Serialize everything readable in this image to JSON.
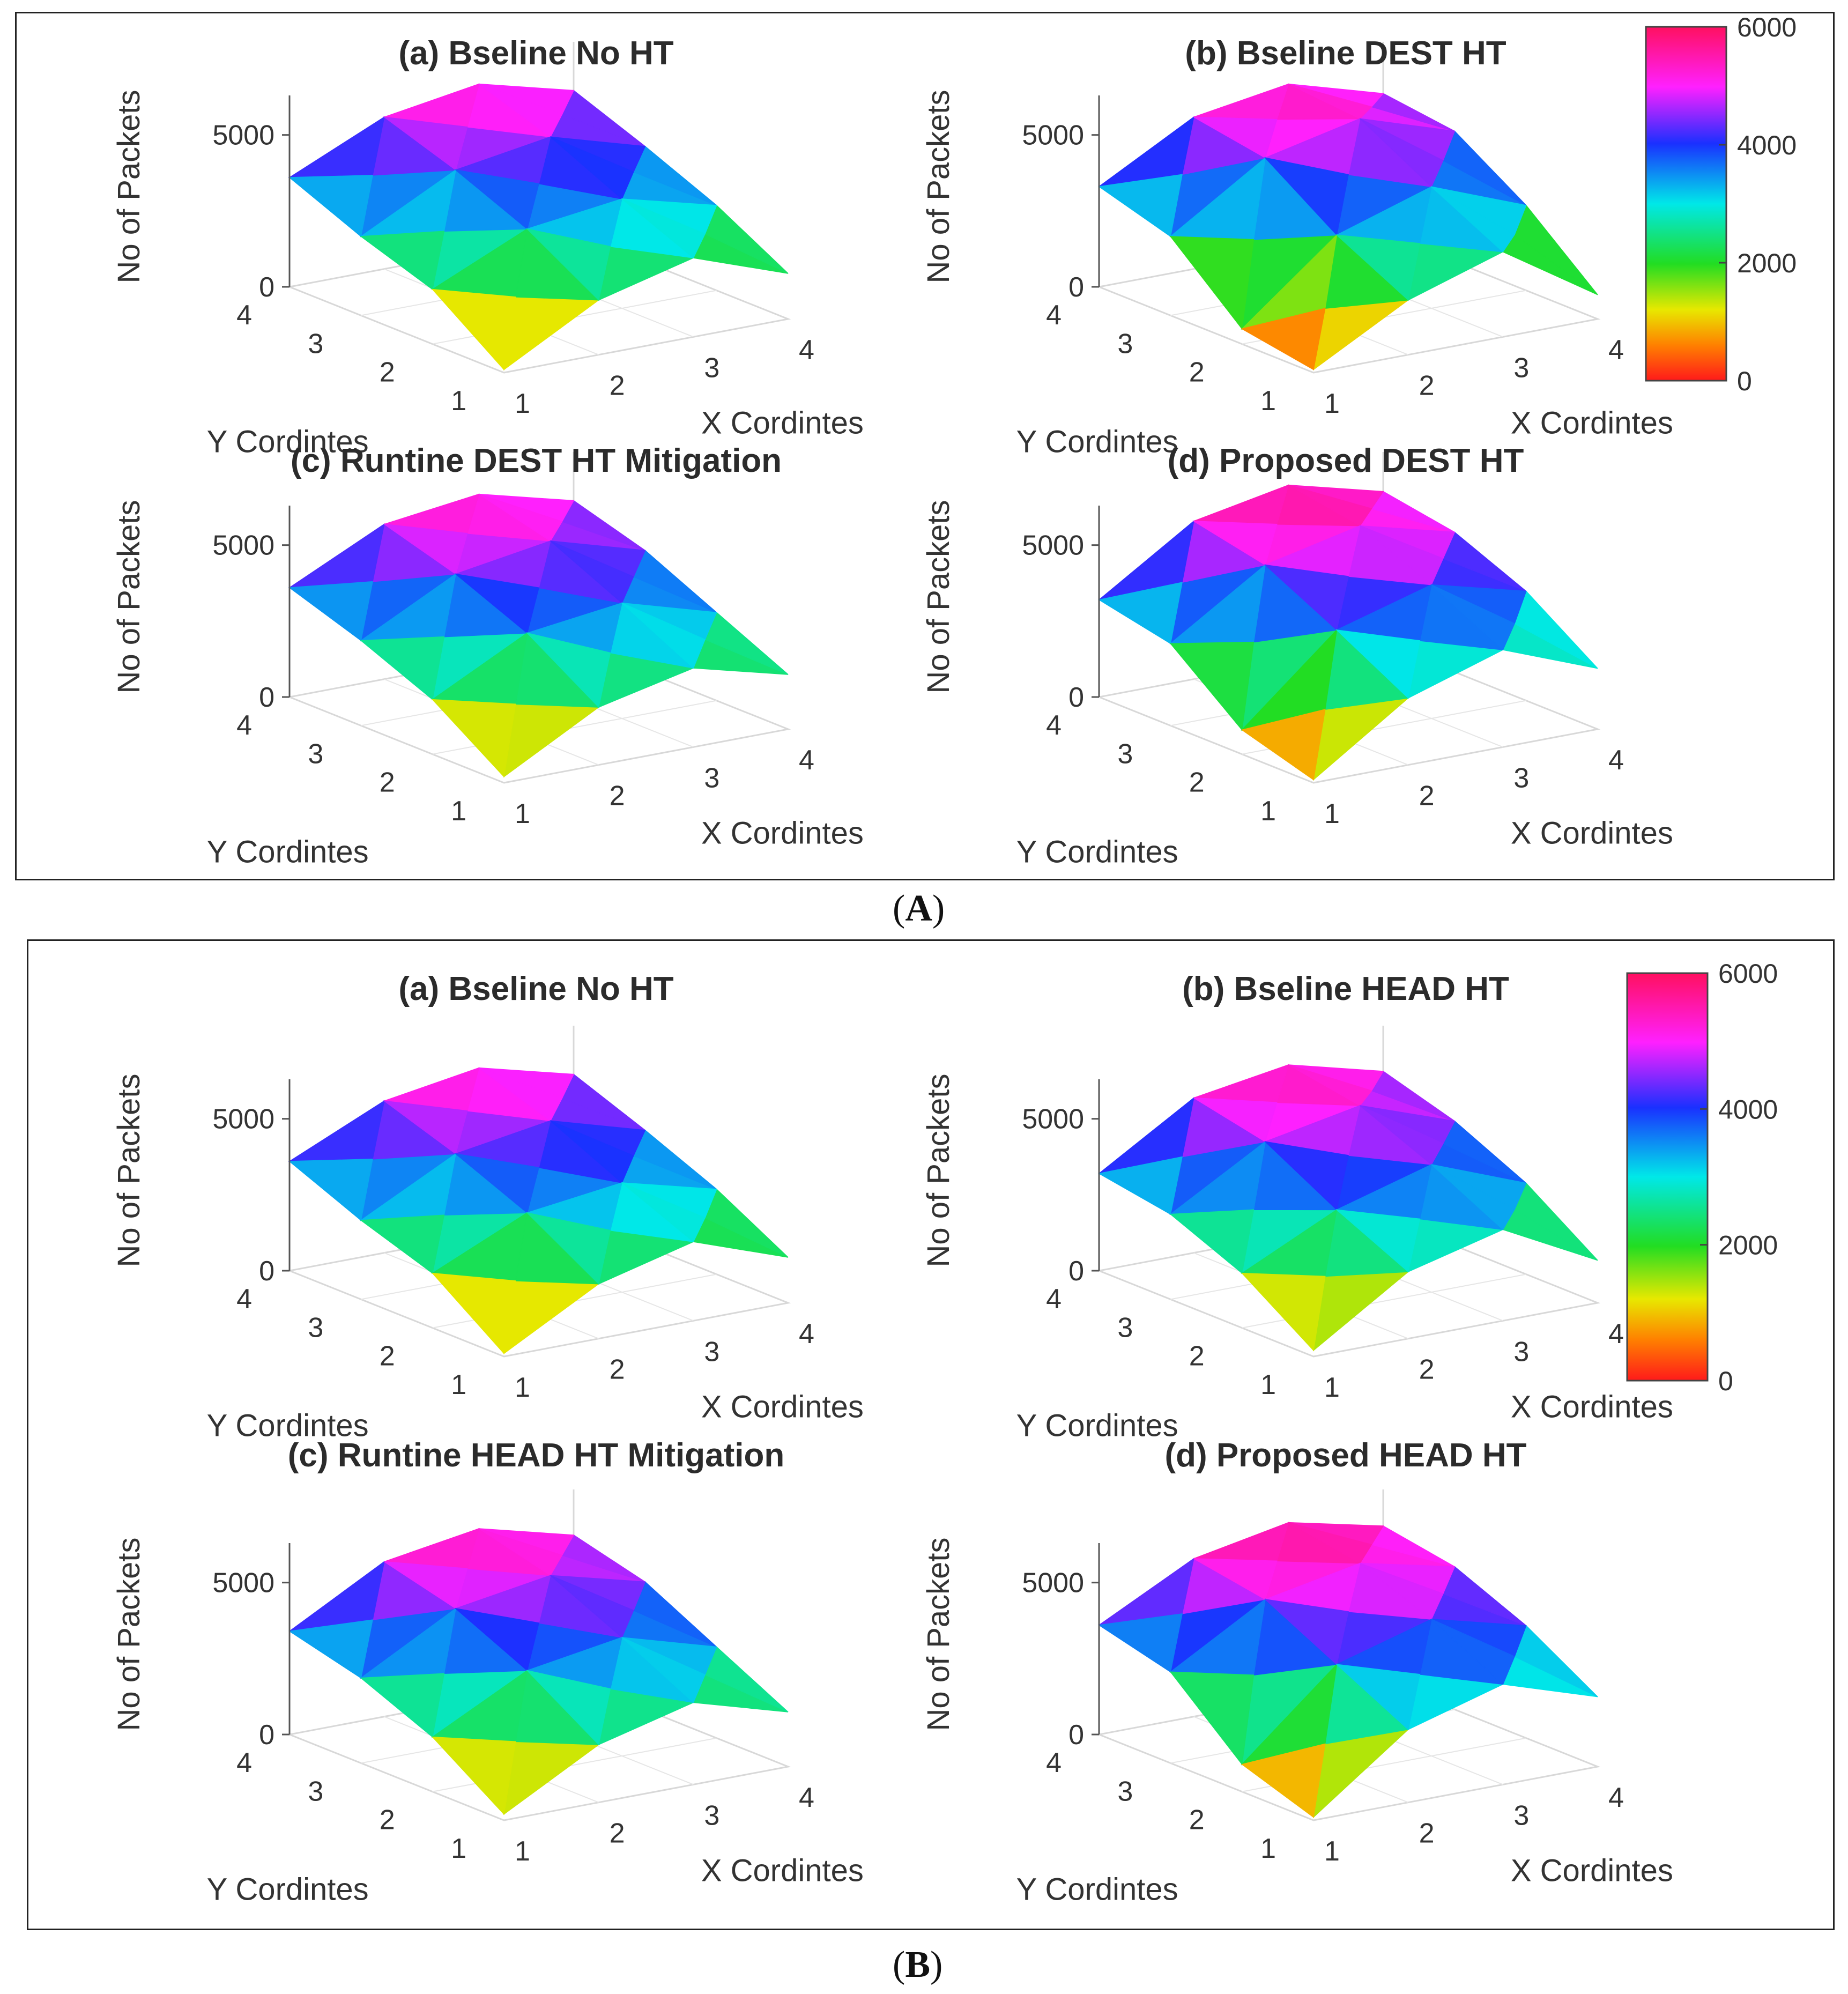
{
  "chart_data": {
    "type": "surface3d",
    "figure_panels": [
      {
        "id": "A",
        "label": "A",
        "colorbar": {
          "min": 0,
          "max": 6000,
          "ticks": [
            "0",
            "2000",
            "4000",
            "6000"
          ]
        },
        "subplots": [
          {
            "title": "(a) Bseline No HT",
            "xlabel": "X Cordintes",
            "ylabel": "Y Cordintes",
            "zlabel": "No of Packets",
            "x_ticks": [
              "1",
              "2",
              "3",
              "4"
            ],
            "y_ticks": [
              "1",
              "2",
              "3",
              "4"
            ],
            "z_ticks": [
              "0",
              "5000"
            ],
            "zlim": [
              0,
              6000
            ],
            "z": [
              [
                100,
                1800,
                2600,
                1500
              ],
              [
                1800,
                3200,
                3600,
                2800
              ],
              [
                2600,
                4200,
                4700,
                3800
              ],
              [
                3600,
                5000,
                5500,
                4700
              ]
            ]
          },
          {
            "title": "(b) Bseline DEST HT",
            "xlabel": "X Cordintes",
            "ylabel": "Y Cordintes",
            "zlabel": "No of Packets",
            "x_ticks": [
              "1",
              "2",
              "3",
              "4"
            ],
            "y_ticks": [
              "1",
              "2",
              "3",
              "4"
            ],
            "z_ticks": [
              "0",
              "5000"
            ],
            "zlim": [
              0,
              6000
            ],
            "z": [
              [
                100,
                1800,
                2800,
                800
              ],
              [
                500,
                3000,
                4000,
                2800
              ],
              [
                2600,
                4600,
                5300,
                4300
              ],
              [
                3300,
                5000,
                5500,
                4600
              ]
            ]
          },
          {
            "title": "(c) Runtine DEST HT Mitigation",
            "xlabel": "X Cordintes",
            "ylabel": "Y Cordintes",
            "zlabel": "No of Packets",
            "x_ticks": [
              "1",
              "2",
              "3",
              "4"
            ],
            "y_ticks": [
              "1",
              "2",
              "3",
              "4"
            ],
            "z_ticks": [
              "0",
              "5000"
            ],
            "zlim": [
              0,
              6000
            ],
            "z": [
              [
                200,
                1900,
                2600,
                1800
              ],
              [
                1800,
                3400,
                3800,
                2900
              ],
              [
                2800,
                4400,
                4900,
                4000
              ],
              [
                3600,
                5100,
                5500,
                4700
              ]
            ]
          },
          {
            "title": "(d) Proposed DEST HT",
            "xlabel": "X Cordintes",
            "ylabel": "Y Cordintes",
            "zlabel": "No of Packets",
            "x_ticks": [
              "1",
              "2",
              "3",
              "4"
            ],
            "y_ticks": [
              "1",
              "2",
              "3",
              "4"
            ],
            "z_ticks": [
              "0",
              "5000"
            ],
            "zlim": [
              0,
              6000
            ],
            "z": [
              [
                100,
                2200,
                3200,
                2000
              ],
              [
                800,
                3500,
                4400,
                3600
              ],
              [
                2700,
                4700,
                5400,
                4600
              ],
              [
                3200,
                5200,
                5800,
                5000
              ]
            ]
          }
        ]
      },
      {
        "id": "B",
        "label": "B",
        "colorbar": {
          "min": 0,
          "max": 6000,
          "ticks": [
            "0",
            "2000",
            "4000",
            "6000"
          ]
        },
        "subplots": [
          {
            "title": "(a) Bseline No HT",
            "xlabel": "X Cordintes",
            "ylabel": "Y Cordintes",
            "zlabel": "No of Packets",
            "x_ticks": [
              "1",
              "2",
              "3",
              "4"
            ],
            "y_ticks": [
              "1",
              "2",
              "3",
              "4"
            ],
            "z_ticks": [
              "0",
              "5000"
            ],
            "zlim": [
              0,
              6000
            ],
            "z": [
              [
                100,
                1800,
                2600,
                1500
              ],
              [
                1800,
                3200,
                3600,
                2800
              ],
              [
                2600,
                4200,
                4700,
                3800
              ],
              [
                3600,
                5000,
                5500,
                4700
              ]
            ]
          },
          {
            "title": "(b) Bseline HEAD HT",
            "xlabel": "X Cordintes",
            "ylabel": "Y Cordintes",
            "zlabel": "No of Packets",
            "x_ticks": [
              "1",
              "2",
              "3",
              "4"
            ],
            "y_ticks": [
              "1",
              "2",
              "3",
              "4"
            ],
            "z_ticks": [
              "0",
              "5000"
            ],
            "zlim": [
              0,
              6000
            ],
            "z": [
              [
                200,
                2200,
                3000,
                1400
              ],
              [
                1800,
                3300,
                4200,
                3000
              ],
              [
                2800,
                4600,
                5200,
                4100
              ],
              [
                3200,
                5100,
                5600,
                4800
              ]
            ]
          },
          {
            "title": "(c) Runtine HEAD HT Mitigation",
            "xlabel": "X Cordintes",
            "ylabel": "Y Cordintes",
            "zlabel": "No of Packets",
            "x_ticks": [
              "1",
              "2",
              "3",
              "4"
            ],
            "y_ticks": [
              "1",
              "2",
              "3",
              "4"
            ],
            "z_ticks": [
              "0",
              "5000"
            ],
            "zlim": [
              0,
              6000
            ],
            "z": [
              [
                200,
                1900,
                2700,
                1800
              ],
              [
                1800,
                3400,
                3900,
                3000
              ],
              [
                2800,
                4500,
                5000,
                4200
              ],
              [
                3400,
                5100,
                5600,
                4800
              ]
            ]
          },
          {
            "title": "(d) Proposed HEAD HT",
            "xlabel": "X Cordintes",
            "ylabel": "Y Cordintes",
            "zlabel": "No of Packets",
            "x_ticks": [
              "1",
              "2",
              "3",
              "4"
            ],
            "y_ticks": [
              "1",
              "2",
              "3",
              "4"
            ],
            "z_ticks": [
              "0",
              "5000"
            ],
            "zlim": [
              0,
              6000
            ],
            "z": [
              [
                100,
                2400,
                3300,
                2300
              ],
              [
                900,
                3600,
                4500,
                3700
              ],
              [
                3000,
                4800,
                5400,
                4700
              ],
              [
                3600,
                5200,
                5800,
                5100
              ]
            ]
          }
        ]
      }
    ]
  }
}
